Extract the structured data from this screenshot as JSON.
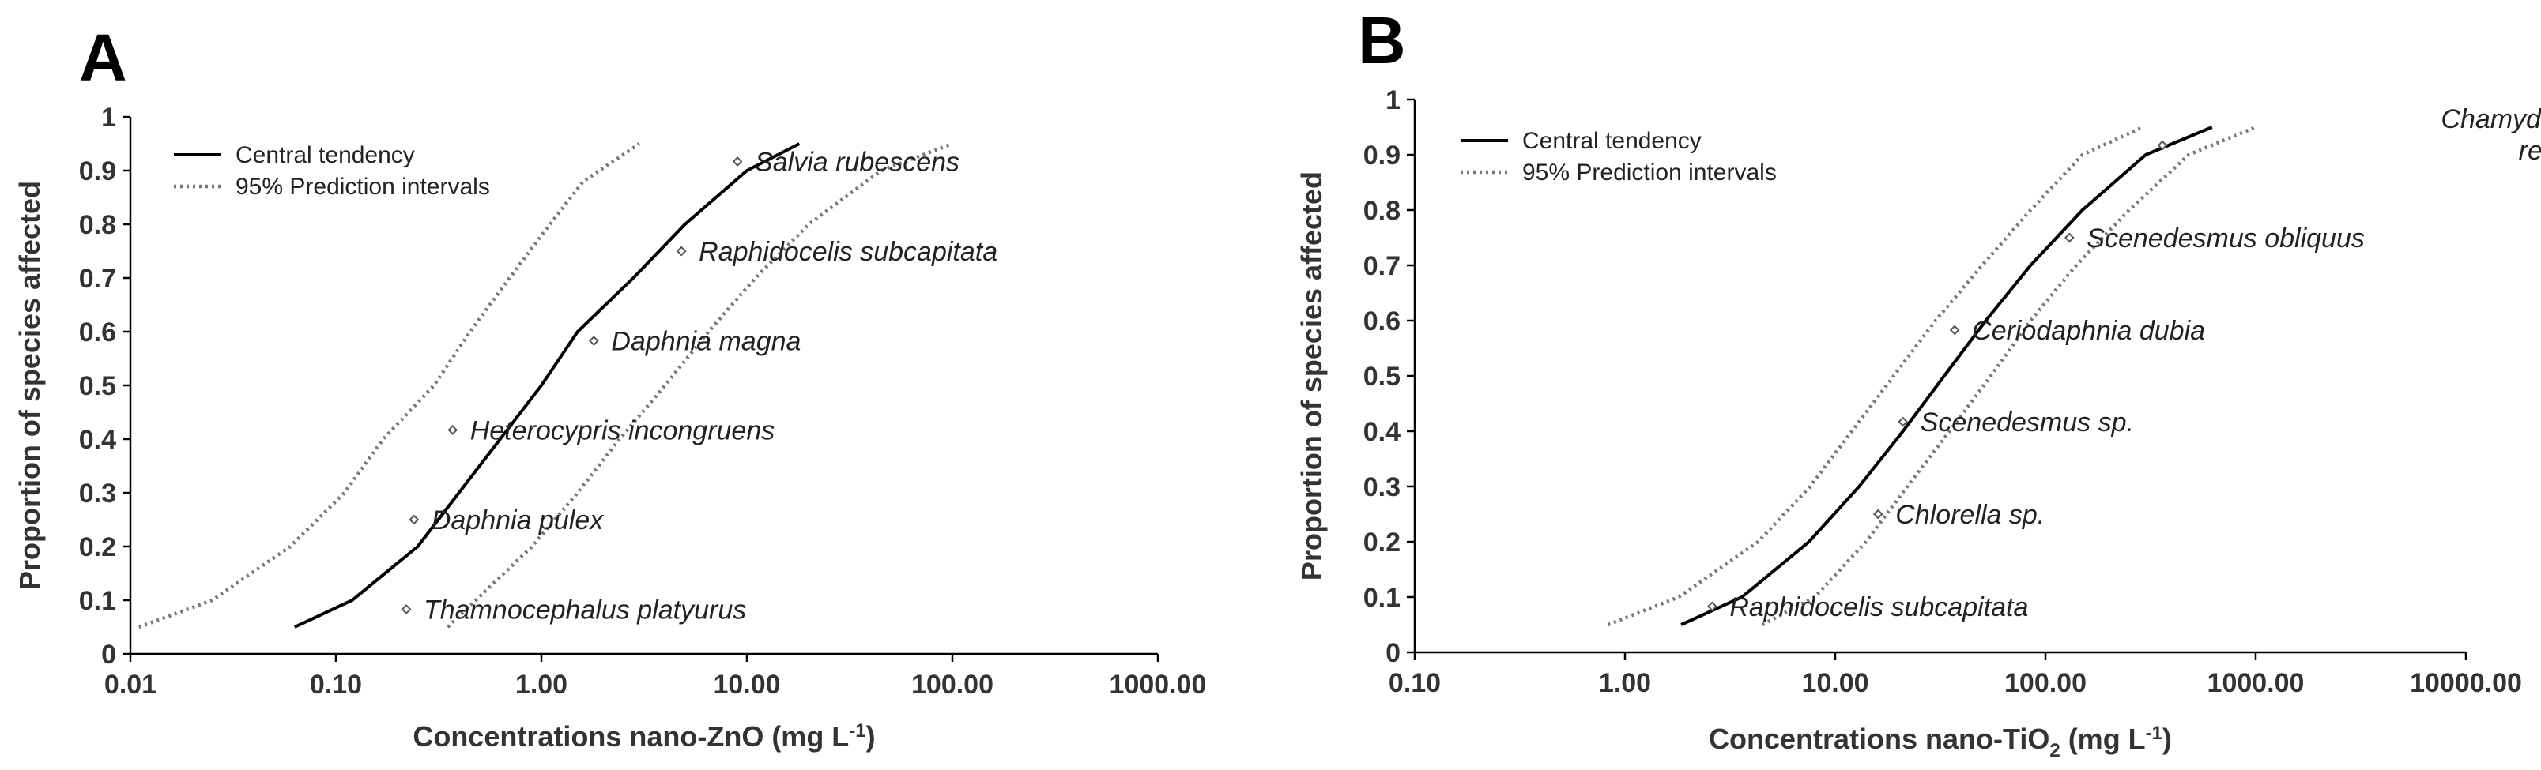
{
  "chart_data": [
    {
      "type": "line",
      "panel_label": "A",
      "x_scale": "log",
      "xlim": [
        0.01,
        1000
      ],
      "x_ticks": [
        "0.01",
        "0.10",
        "1.00",
        "10.00",
        "100.00",
        "1000.00"
      ],
      "ylim": [
        0,
        1
      ],
      "y_ticks": [
        "0",
        "0.1",
        "0.2",
        "0.3",
        "0.4",
        "0.5",
        "0.6",
        "0.7",
        "0.8",
        "0.9",
        "1"
      ],
      "xlabel": {
        "main": "Concentrations nano-ZnO (mg L",
        "sup": "-1",
        "tail": ")"
      },
      "ylabel": "Proportion of species affected",
      "legend": {
        "placement": "top-left",
        "central": "Central tendency",
        "interval": "95% Prediction intervals"
      },
      "series": [
        {
          "name": "Central tendency",
          "style": "solid",
          "points": [
            [
              0.063,
              0.05
            ],
            [
              0.12,
              0.1
            ],
            [
              0.25,
              0.2
            ],
            [
              0.5,
              0.35
            ],
            [
              1.0,
              0.5
            ],
            [
              1.5,
              0.6
            ],
            [
              2.8,
              0.7
            ],
            [
              5.0,
              0.8
            ],
            [
              10,
              0.9
            ],
            [
              18,
              0.95
            ]
          ]
        },
        {
          "name": "95% Prediction intervals (lower)",
          "style": "dotted",
          "points": [
            [
              0.011,
              0.05
            ],
            [
              0.025,
              0.1
            ],
            [
              0.06,
              0.2
            ],
            [
              0.11,
              0.3
            ],
            [
              0.17,
              0.4
            ],
            [
              0.3,
              0.5
            ],
            [
              0.45,
              0.6
            ],
            [
              0.7,
              0.7
            ],
            [
              1.1,
              0.8
            ],
            [
              1.6,
              0.88
            ],
            [
              3.0,
              0.95
            ]
          ]
        },
        {
          "name": "95% Prediction intervals (upper)",
          "style": "dotted",
          "points": [
            [
              0.35,
              0.05
            ],
            [
              0.9,
              0.2
            ],
            [
              1.5,
              0.3
            ],
            [
              2.4,
              0.4
            ],
            [
              4.0,
              0.5
            ],
            [
              6.5,
              0.6
            ],
            [
              11,
              0.7
            ],
            [
              20,
              0.8
            ],
            [
              45,
              0.9
            ],
            [
              100,
              0.95
            ]
          ]
        }
      ],
      "points": [
        {
          "label": "Thamnocephalus platyurus",
          "x": 0.22,
          "y": 0.083
        },
        {
          "label": "Daphnia pulex",
          "x": 0.24,
          "y": 0.25
        },
        {
          "label": "Heterocypris incongruens",
          "x": 0.37,
          "y": 0.417
        },
        {
          "label": "Daphnia magna",
          "x": 1.8,
          "y": 0.583
        },
        {
          "label": "Raphidocelis subcapitata",
          "x": 4.8,
          "y": 0.75
        },
        {
          "label": "Salvia rubescens",
          "x": 9.0,
          "y": 0.917
        }
      ]
    },
    {
      "type": "line",
      "panel_label": "B",
      "x_scale": "log",
      "xlim": [
        0.1,
        10000
      ],
      "x_ticks": [
        "0.10",
        "1.00",
        "10.00",
        "100.00",
        "1000.00",
        "10000.00"
      ],
      "ylim": [
        0,
        1
      ],
      "y_ticks": [
        "0",
        "0.1",
        "0.2",
        "0.3",
        "0.4",
        "0.5",
        "0.6",
        "0.7",
        "0.8",
        "0.9",
        "1"
      ],
      "xlabel": {
        "main": "Concentrations nano-TiO",
        "sub": "2",
        "tail": " (mg L",
        "sup": "-1",
        "tail2": ")"
      },
      "ylabel": "Proportion of species affected",
      "legend": {
        "placement": "top-left",
        "central": "Central tendency",
        "interval": "95% Prediction intervals"
      },
      "series": [
        {
          "name": "Central tendency",
          "style": "solid",
          "points": [
            [
              1.85,
              0.05
            ],
            [
              3.6,
              0.1
            ],
            [
              7.5,
              0.2
            ],
            [
              13,
              0.3
            ],
            [
              21,
              0.4
            ],
            [
              33,
              0.5
            ],
            [
              52,
              0.6
            ],
            [
              85,
              0.7
            ],
            [
              150,
              0.8
            ],
            [
              300,
              0.9
            ],
            [
              620,
              0.95
            ]
          ]
        },
        {
          "name": "95% Prediction intervals (lower)",
          "style": "dotted",
          "points": [
            [
              0.83,
              0.05
            ],
            [
              1.8,
              0.1
            ],
            [
              4.3,
              0.2
            ],
            [
              7.6,
              0.3
            ],
            [
              12,
              0.4
            ],
            [
              19,
              0.5
            ],
            [
              30,
              0.6
            ],
            [
              50,
              0.7
            ],
            [
              85,
              0.8
            ],
            [
              150,
              0.9
            ],
            [
              290,
              0.95
            ]
          ]
        },
        {
          "name": "95% Prediction intervals (upper)",
          "style": "dotted",
          "points": [
            [
              4.5,
              0.05
            ],
            [
              8.0,
              0.1
            ],
            [
              14,
              0.2
            ],
            [
              22,
              0.3
            ],
            [
              35,
              0.4
            ],
            [
              55,
              0.5
            ],
            [
              85,
              0.6
            ],
            [
              140,
              0.7
            ],
            [
              250,
              0.8
            ],
            [
              480,
              0.9
            ],
            [
              1000,
              0.95
            ]
          ]
        }
      ],
      "points": [
        {
          "label": "Raphidocelis subcapitata",
          "x": 2.6,
          "y": 0.083
        },
        {
          "label": "Chlorella sp.",
          "x": 16,
          "y": 0.25
        },
        {
          "label": "Scenedesmus sp.",
          "x": 21,
          "y": 0.417
        },
        {
          "label": "Ceriodaphnia dubia",
          "x": 37,
          "y": 0.583
        },
        {
          "label": "Scenedesmus obliquus",
          "x": 130,
          "y": 0.75
        },
        {
          "label": "Chamydomonas reinhardtii",
          "x": 360,
          "y": 0.917,
          "label_lines": [
            "Chamydomonas",
            "reinhardtii"
          ]
        }
      ]
    }
  ]
}
